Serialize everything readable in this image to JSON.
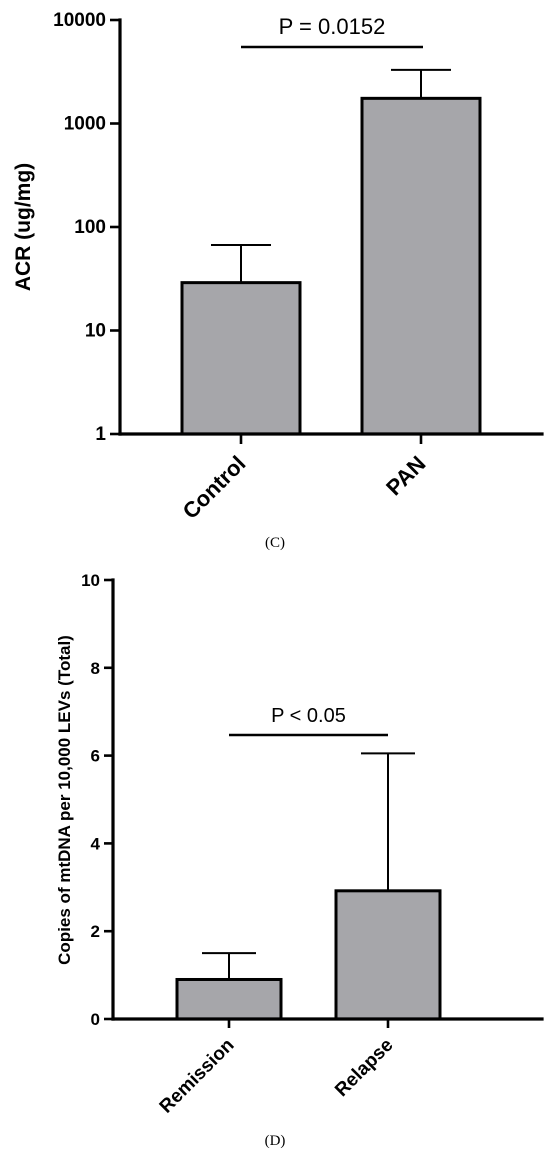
{
  "chart_data": [
    {
      "type": "bar",
      "caption": "(C)",
      "ylabel": "ACR (ug/mg)",
      "xlabel": "",
      "yscale": "log",
      "ylim": [
        1,
        10000
      ],
      "yticks": [
        1,
        10,
        100,
        1000,
        10000
      ],
      "ytick_labels": [
        "1",
        "10",
        "100",
        "1000",
        "10000"
      ],
      "categories": [
        "Control",
        "PAN"
      ],
      "values": [
        29,
        1750
      ],
      "error_upper": [
        67,
        3300
      ],
      "bar_color": "#a6a6aa",
      "significance": {
        "text": "P = 0.0152",
        "from": "Control",
        "to": "PAN"
      },
      "grid": false
    },
    {
      "type": "bar",
      "caption": "(D)",
      "ylabel": "Copies of mtDNA per 10,000 LEVs (Total)",
      "xlabel": "",
      "yscale": "linear",
      "ylim": [
        0,
        10
      ],
      "yticks": [
        0,
        2,
        4,
        6,
        8,
        10
      ],
      "ytick_labels": [
        "0",
        "2",
        "4",
        "6",
        "8",
        "10"
      ],
      "categories": [
        "Remission",
        "Relapse"
      ],
      "values": [
        0.9,
        2.92
      ],
      "error_upper": [
        1.5,
        6.05
      ],
      "bar_color": "#a6a6aa",
      "significance": {
        "text": "P < 0.05",
        "from": "Remission",
        "to": "Relapse"
      },
      "grid": false
    }
  ]
}
